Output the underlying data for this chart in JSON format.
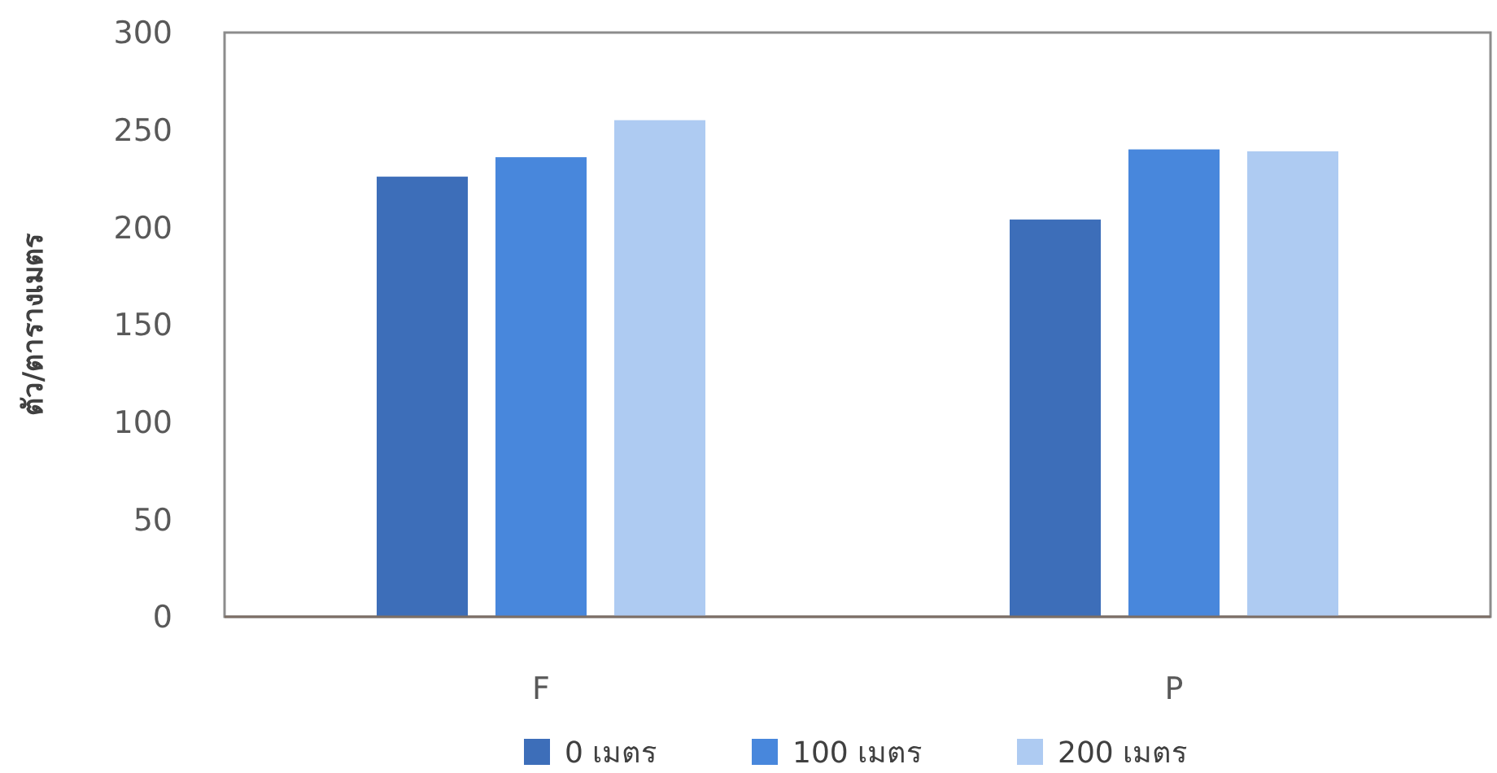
{
  "chart_data": {
    "type": "bar",
    "categories": [
      "F",
      "P"
    ],
    "ylabel": "ตัว/ตารางเมตร",
    "series": [
      {
        "name": "0 เมตร",
        "color": "#3d6eb9",
        "values": [
          226,
          204
        ]
      },
      {
        "name": "100 เมตร",
        "color": "#4887dc",
        "values": [
          236,
          240
        ]
      },
      {
        "name": "200 เมตร",
        "color": "#aecbf2",
        "values": [
          255,
          239
        ]
      }
    ],
    "ylim": [
      0,
      300
    ],
    "yticks": [
      0,
      50,
      100,
      150,
      200,
      250,
      300
    ],
    "legend": "bottom"
  }
}
